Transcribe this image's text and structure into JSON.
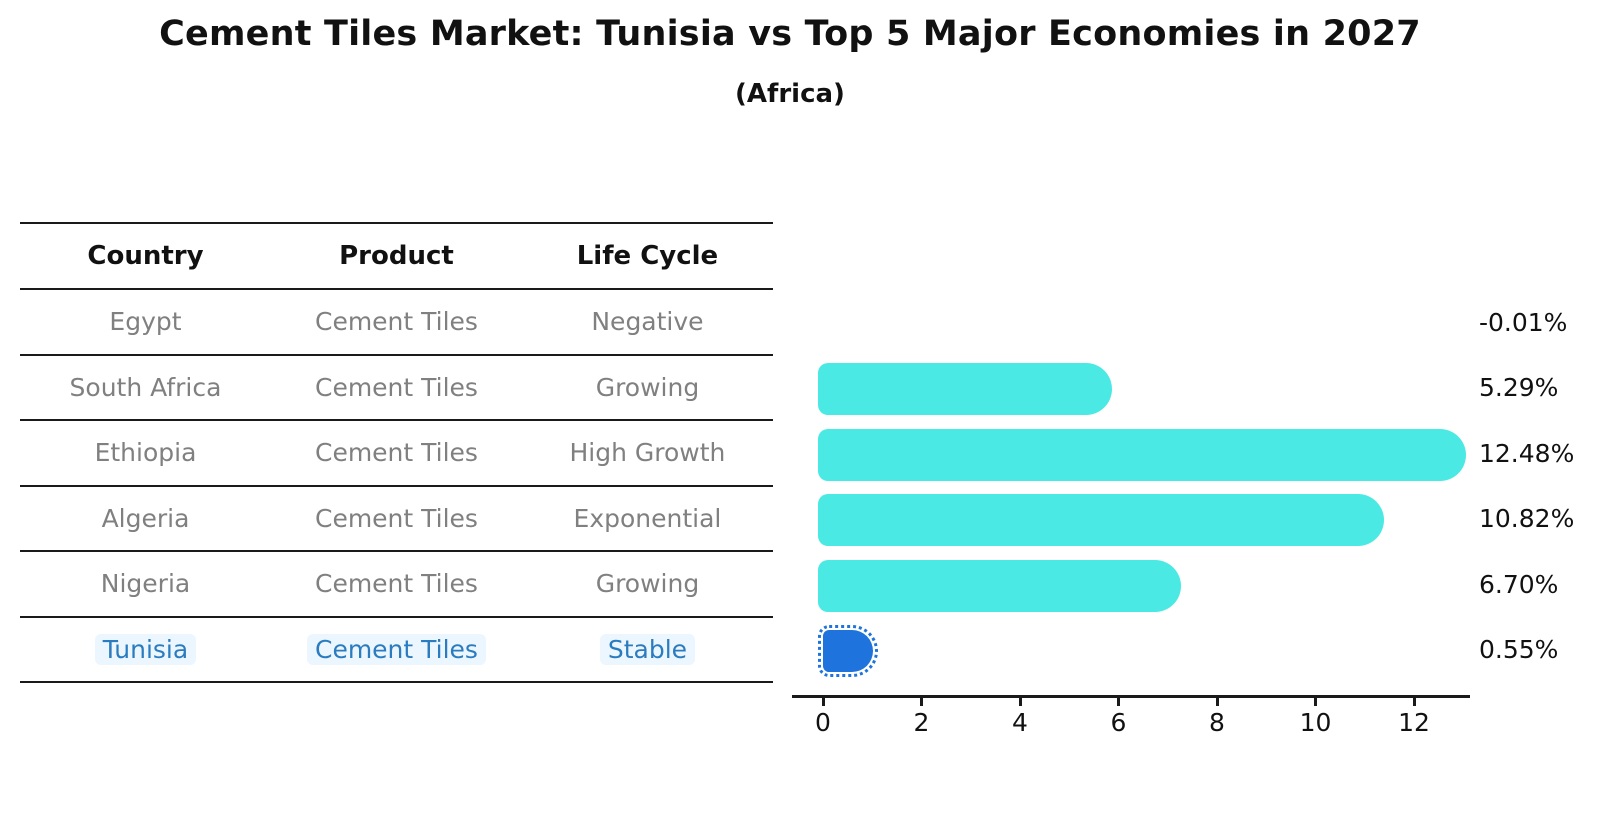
{
  "header": {
    "title": "Cement Tiles Market: Tunisia vs Top 5 Major Economies in 2027",
    "subtitle": "(Africa)"
  },
  "table": {
    "headers": [
      "Country",
      "Product",
      "Life Cycle"
    ],
    "rows": [
      {
        "country": "Egypt",
        "product": "Cement Tiles",
        "life_cycle": "Negative",
        "highlighted": false
      },
      {
        "country": "South Africa",
        "product": "Cement Tiles",
        "life_cycle": "Growing",
        "highlighted": false
      },
      {
        "country": "Ethiopia",
        "product": "Cement Tiles",
        "life_cycle": "High Growth",
        "highlighted": false
      },
      {
        "country": "Algeria",
        "product": "Cement Tiles",
        "life_cycle": "Exponential",
        "highlighted": false
      },
      {
        "country": "Nigeria",
        "product": "Cement Tiles",
        "life_cycle": "Growing",
        "highlighted": false
      },
      {
        "country": "Tunisia",
        "product": "Cement Tiles",
        "life_cycle": "Stable",
        "highlighted": true
      }
    ]
  },
  "chart_data": {
    "type": "bar",
    "orientation": "horizontal",
    "title": "Cement Tiles Market: Tunisia vs Top 5 Major Economies in 2027",
    "subtitle": "(Africa)",
    "categories": [
      "Egypt",
      "South Africa",
      "Ethiopia",
      "Algeria",
      "Nigeria",
      "Tunisia"
    ],
    "values": [
      -0.01,
      5.29,
      12.48,
      10.82,
      6.7,
      0.55
    ],
    "value_labels": [
      "-0.01%",
      "5.29%",
      "12.48%",
      "10.82%",
      "6.70%",
      "0.55%"
    ],
    "x_ticks": [
      0,
      2,
      4,
      6,
      8,
      10,
      12
    ],
    "xlim": [
      -0.6,
      13.2
    ],
    "grid": false,
    "legend": false,
    "bar_color": "#4BE9E4",
    "highlight_bar_color": "#1E73DC",
    "highlight_index": 5
  },
  "colors": {
    "row_text": "#808080",
    "highlight_text": "#2B7CBF",
    "header_text": "#111111",
    "line": "#1a1a1a"
  }
}
